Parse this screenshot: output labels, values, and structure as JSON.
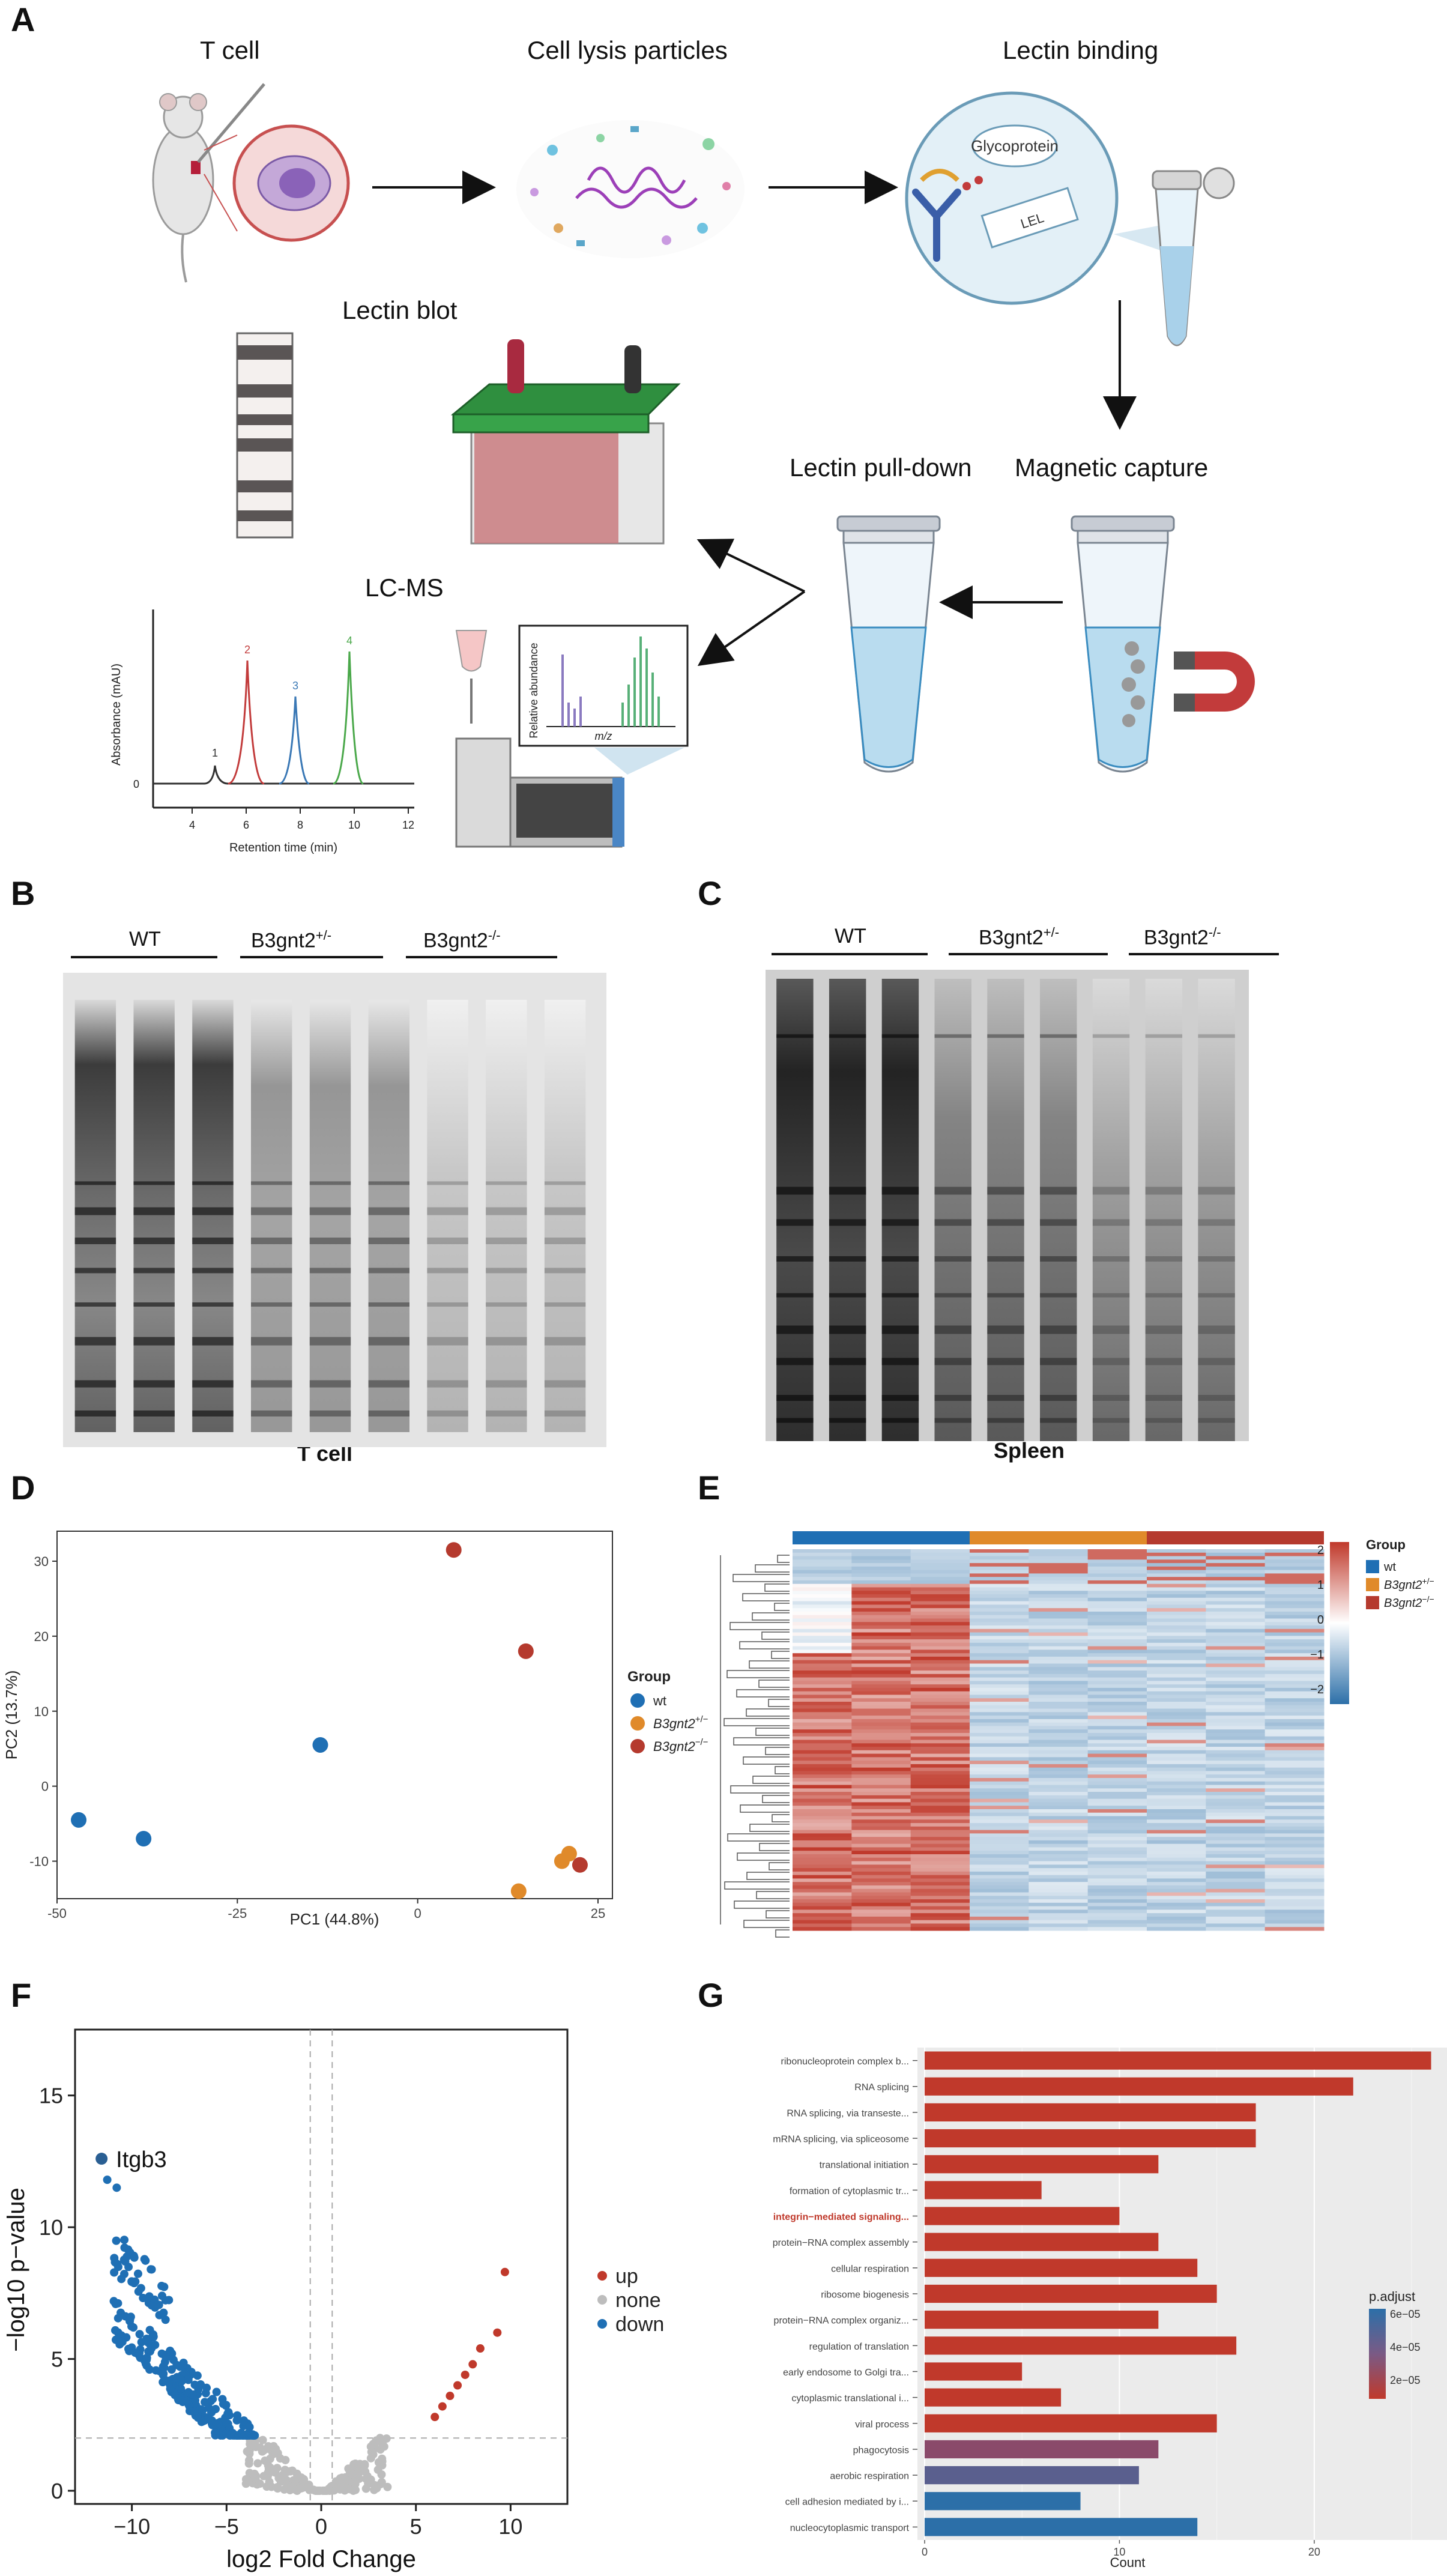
{
  "panels": {
    "a": "A",
    "b": "B",
    "c": "C",
    "d": "D",
    "e": "E",
    "f": "F",
    "g": "G"
  },
  "workflow": {
    "t_cell": "T  cell",
    "cell_lysis": "Cell lysis particles",
    "lectin_binding": "Lectin binding",
    "glycoprotein": "Glycoprotein",
    "lel": "LEL",
    "lectin_blot": "Lectin blot",
    "lectin_pulldown": "Lectin pull-down",
    "magnetic_capture": "Magnetic capture",
    "lcms": "LC-MS",
    "rel_abundance": "Relative abundance",
    "mz": "m/z",
    "chrom_ylabel": "Absorbance (mAU)",
    "chrom_xlabel": "Retention time (min)",
    "chrom_xticks": [
      "4",
      "6",
      "8",
      "10",
      "12"
    ],
    "chrom_zero": "0",
    "peak_labels": [
      "1",
      "2",
      "3",
      "4"
    ],
    "peak_colors": [
      "#333333",
      "#c23b3b",
      "#3a78b5",
      "#4aa84a"
    ]
  },
  "gel_b": {
    "wt": "WT",
    "het": "B3gnt2",
    "het_sup": "+/-",
    "ko": "B3gnt2",
    "ko_sup": "-/-",
    "caption": "T cell"
  },
  "gel_c": {
    "wt": "WT",
    "het": "B3gnt2",
    "het_sup": "+/-",
    "ko": "B3gnt2",
    "ko_sup": "-/-",
    "caption": "Spleen"
  },
  "chart_data": [
    {
      "panel": "D",
      "type": "scatter",
      "xlabel": "PC1 (44.8%)",
      "ylabel": "PC2 (13.7%)",
      "xlim": [
        -50,
        27
      ],
      "ylim": [
        -15,
        34
      ],
      "xticks": [
        -50,
        -25,
        0,
        25
      ],
      "yticks": [
        -10,
        0,
        10,
        20,
        30
      ],
      "legend_title": "Group",
      "legend_position": "right",
      "series": [
        {
          "name": "wt",
          "color": "#1f6fb4",
          "points": [
            [
              -47,
              -4.5
            ],
            [
              -38,
              -7
            ],
            [
              -13.5,
              5.5
            ]
          ]
        },
        {
          "name": "B3gnt2+/-",
          "color": "#e08a2a",
          "points": [
            [
              14,
              -14
            ],
            [
              20,
              -10
            ],
            [
              21,
              -9
            ]
          ]
        },
        {
          "name": "B3gnt2-/-",
          "color": "#b53a2e",
          "points": [
            [
              5,
              31.5
            ],
            [
              15,
              18
            ],
            [
              22.5,
              -10.5
            ]
          ]
        }
      ],
      "legend_labels": [
        {
          "main": "wt",
          "sup": ""
        },
        {
          "main": "B3gnt2",
          "sup": "+/−"
        },
        {
          "main": "B3gnt2",
          "sup": "−/−"
        }
      ]
    },
    {
      "panel": "E",
      "type": "heatmap",
      "legend_title": "Group",
      "groups": [
        {
          "main": "wt",
          "sup": "",
          "color": "#1f6fb4"
        },
        {
          "main": "B3gnt2",
          "sup": "+/−",
          "color": "#e08a2a"
        },
        {
          "main": "B3gnt2",
          "sup": "−/−",
          "color": "#b53a2e"
        }
      ],
      "scale_ticks": [
        "2",
        "1",
        "0",
        "−1",
        "−2"
      ],
      "scale_colors": [
        "#c0392b",
        "#ffffff",
        "#2c6fa8"
      ],
      "columns": 9
    },
    {
      "panel": "F",
      "type": "scatter",
      "subtype": "volcano",
      "xlabel": "log2 Fold Change",
      "ylabel": "−log10 p−value",
      "xlim": [
        -13,
        13
      ],
      "ylim": [
        -0.5,
        17.5
      ],
      "xticks": [
        -10,
        -5,
        0,
        5,
        10
      ],
      "yticks": [
        0,
        5,
        10,
        15
      ],
      "vlines": [
        -0.58,
        0.58
      ],
      "hline": 2,
      "annotation": {
        "label": "Itgb3",
        "x": -11.6,
        "y": 12.6
      },
      "legend": [
        {
          "name": "up",
          "color": "#c0392b"
        },
        {
          "name": "none",
          "color": "#bdbdbd"
        },
        {
          "name": "down",
          "color": "#1f6fb4"
        }
      ],
      "up_points": [
        [
          6,
          2.8
        ],
        [
          6.4,
          3.2
        ],
        [
          6.8,
          3.6
        ],
        [
          7.2,
          4.0
        ],
        [
          7.6,
          4.4
        ],
        [
          8,
          4.8
        ],
        [
          8.4,
          5.4
        ],
        [
          9.3,
          6
        ],
        [
          9.7,
          8.3
        ]
      ]
    },
    {
      "panel": "G",
      "type": "bar",
      "orientation": "horizontal",
      "xlabel": "Count",
      "xlim": [
        0,
        27
      ],
      "xticks": [
        0,
        10,
        20
      ],
      "legend_title": "p.adjust",
      "legend_ticks": [
        "6e−05",
        "4e−05",
        "2e−05"
      ],
      "highlight_index": 6,
      "categories": [
        "ribonucleoprotein complex b...",
        "RNA splicing",
        "RNA splicing, via transeste...",
        "mRNA splicing, via spliceosome",
        "translational initiation",
        "formation of cytoplasmic tr...",
        "integrin−mediated signaling...",
        "protein−RNA complex assembly",
        "cellular respiration",
        "ribosome biogenesis",
        "protein−RNA complex organiz...",
        "regulation of translation",
        "early endosome to Golgi tra...",
        "cytoplasmic translational i...",
        "viral process",
        "phagocytosis",
        "aerobic respiration",
        "cell adhesion mediated by i...",
        "nucleocytoplasmic transport"
      ],
      "values": [
        26,
        22,
        17,
        17,
        12,
        6,
        10,
        12,
        14,
        15,
        12,
        16,
        5,
        7,
        15,
        12,
        11,
        8,
        14
      ],
      "colors": [
        "#c0392b",
        "#c0392b",
        "#c0392b",
        "#c0392b",
        "#c0392b",
        "#c0392b",
        "#c0392b",
        "#c0392b",
        "#c0392b",
        "#c0392b",
        "#c0392b",
        "#c0392b",
        "#c0392b",
        "#c0392b",
        "#c0392b",
        "#8a4a6a",
        "#5a5f8e",
        "#2c6fa8",
        "#2c6fa8"
      ]
    }
  ]
}
